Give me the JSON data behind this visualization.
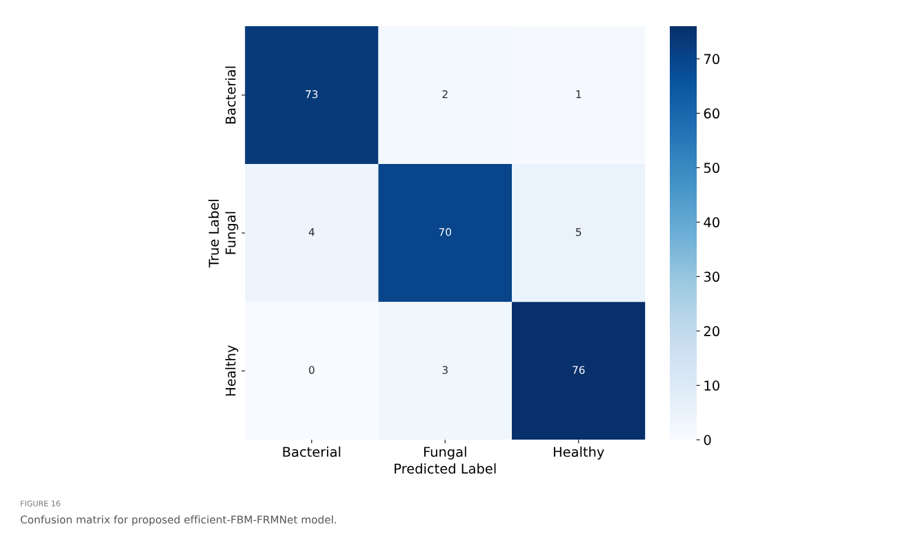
{
  "chart_data": {
    "type": "heatmap",
    "categories": [
      "Bacterial",
      "Fungal",
      "Healthy"
    ],
    "y_categories": [
      "Bacterial",
      "Fungal",
      "Healthy"
    ],
    "cells": [
      [
        73,
        2,
        1
      ],
      [
        4,
        70,
        5
      ],
      [
        0,
        3,
        76
      ]
    ],
    "data_labels": true,
    "clim": [
      0,
      76
    ],
    "cticks": [
      0,
      10,
      20,
      30,
      40,
      50,
      60,
      70
    ],
    "xlabel": "Predicted Label",
    "ylabel": "True Label",
    "annotations": [
      "FIGURE 16",
      "Confusion matrix for proposed efficient-FBM-FRMNet model."
    ]
  }
}
